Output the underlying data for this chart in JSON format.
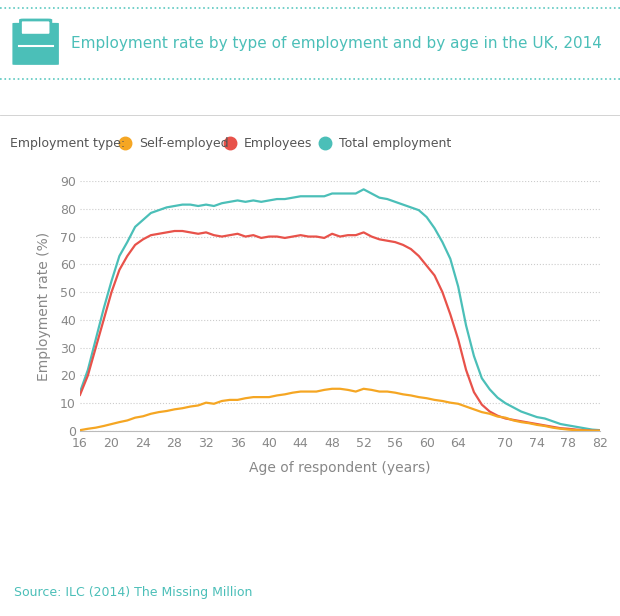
{
  "title": "Employment rate by type of employment and by age in the UK, 2014",
  "xlabel": "Age of respondent (years)",
  "ylabel": "Employment rate (%)",
  "source": "Source: ILC (2014) The Missing Million",
  "background_color": "#ffffff",
  "footer_bg": "#b2dedd",
  "dotted_line_color": "#5bc8c0",
  "grid_color": "#cccccc",
  "title_color": "#4bbfb8",
  "axis_color": "#888888",
  "legend_label_color": "#555555",
  "colors": {
    "self_employed": "#f5a623",
    "employees": "#e8524a",
    "total": "#4bbfb8"
  },
  "ages": [
    16,
    17,
    18,
    19,
    20,
    21,
    22,
    23,
    24,
    25,
    26,
    27,
    28,
    29,
    30,
    31,
    32,
    33,
    34,
    35,
    36,
    37,
    38,
    39,
    40,
    41,
    42,
    43,
    44,
    45,
    46,
    47,
    48,
    49,
    50,
    51,
    52,
    53,
    54,
    55,
    56,
    57,
    58,
    59,
    60,
    61,
    62,
    63,
    64,
    65,
    66,
    67,
    68,
    69,
    70,
    71,
    72,
    73,
    74,
    75,
    76,
    77,
    78,
    79,
    80,
    81,
    82
  ],
  "self_employed": [
    0.3,
    0.8,
    1.2,
    1.8,
    2.5,
    3.2,
    3.8,
    4.8,
    5.3,
    6.2,
    6.8,
    7.2,
    7.8,
    8.2,
    8.8,
    9.2,
    10.2,
    9.8,
    10.8,
    11.2,
    11.2,
    11.8,
    12.2,
    12.2,
    12.2,
    12.8,
    13.2,
    13.8,
    14.2,
    14.2,
    14.2,
    14.8,
    15.2,
    15.2,
    14.8,
    14.2,
    15.2,
    14.8,
    14.2,
    14.2,
    13.8,
    13.2,
    12.8,
    12.2,
    11.8,
    11.2,
    10.8,
    10.2,
    9.8,
    8.8,
    7.8,
    6.8,
    6.2,
    5.2,
    4.8,
    3.8,
    3.2,
    2.8,
    2.2,
    1.8,
    1.2,
    0.8,
    0.5,
    0.3,
    0.2,
    0.1,
    0.1
  ],
  "employees": [
    13.0,
    20.0,
    30.0,
    40.0,
    50.0,
    58.0,
    63.0,
    67.0,
    69.0,
    70.5,
    71.0,
    71.5,
    72.0,
    72.0,
    71.5,
    71.0,
    71.5,
    70.5,
    70.0,
    70.5,
    71.0,
    70.0,
    70.5,
    69.5,
    70.0,
    70.0,
    69.5,
    70.0,
    70.5,
    70.0,
    70.0,
    69.5,
    71.0,
    70.0,
    70.5,
    70.5,
    71.5,
    70.0,
    69.0,
    68.5,
    68.0,
    67.0,
    65.5,
    63.0,
    59.5,
    56.0,
    50.0,
    42.0,
    33.0,
    22.0,
    14.0,
    9.5,
    7.0,
    5.5,
    4.5,
    4.0,
    3.5,
    3.0,
    2.5,
    2.0,
    1.5,
    1.0,
    0.8,
    0.5,
    0.3,
    0.1,
    0.1
  ],
  "total": [
    14.0,
    22.0,
    33.0,
    44.0,
    54.0,
    63.0,
    68.0,
    73.5,
    76.0,
    78.5,
    79.5,
    80.5,
    81.0,
    81.5,
    81.5,
    81.0,
    81.5,
    81.0,
    82.0,
    82.5,
    83.0,
    82.5,
    83.0,
    82.5,
    83.0,
    83.5,
    83.5,
    84.0,
    84.5,
    84.5,
    84.5,
    84.5,
    85.5,
    85.5,
    85.5,
    85.5,
    87.0,
    85.5,
    84.0,
    83.5,
    82.5,
    81.5,
    80.5,
    79.5,
    77.0,
    73.0,
    68.0,
    62.0,
    52.0,
    38.0,
    27.0,
    19.0,
    15.0,
    12.0,
    10.0,
    8.5,
    7.0,
    6.0,
    5.0,
    4.5,
    3.5,
    2.5,
    2.0,
    1.5,
    1.0,
    0.5,
    0.3
  ],
  "ylim": [
    0,
    90
  ],
  "yticks": [
    0,
    10,
    20,
    30,
    40,
    50,
    60,
    70,
    80,
    90
  ],
  "xticks": [
    16,
    20,
    24,
    28,
    32,
    36,
    40,
    44,
    48,
    52,
    56,
    60,
    64,
    70,
    74,
    78,
    82
  ],
  "xlim": [
    16,
    82
  ]
}
